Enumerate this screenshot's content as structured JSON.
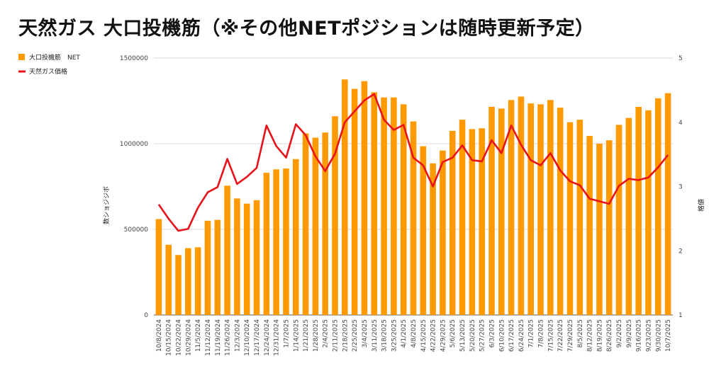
{
  "chart_data": {
    "type": "bar",
    "title": "天然ガス 大口投機筋（※その他NETポジションは随時更新予定）",
    "categories": [
      "10/8/2024",
      "10/15/2024",
      "10/22/2024",
      "10/29/2024",
      "11/5/2024",
      "11/12/2024",
      "11/19/2024",
      "11/26/2024",
      "12/3/2024",
      "12/10/2024",
      "12/17/2024",
      "12/24/2024",
      "12/31/2024",
      "1/7/2025",
      "1/14/2025",
      "1/21/2025",
      "1/28/2025",
      "2/4/2025",
      "2/11/2025",
      "2/18/2025",
      "2/25/2025",
      "3/4/2025",
      "3/11/2025",
      "3/18/2025",
      "3/25/2025",
      "4/1/2025",
      "4/8/2025",
      "4/15/2025",
      "4/22/2025",
      "4/29/2025",
      "5/6/2025",
      "5/13/2025",
      "5/20/2025",
      "5/27/2025",
      "6/3/2025",
      "6/10/2025",
      "6/17/2025",
      "6/24/2025",
      "7/1/2025",
      "7/8/2025",
      "7/15/2025",
      "7/22/2025",
      "7/29/2025",
      "8/5/2025",
      "8/12/2025",
      "8/19/2025",
      "8/26/2025",
      "9/2/2025",
      "9/9/2025",
      "9/16/2025",
      "9/23/2025",
      "9/30/2025",
      "10/7/2025"
    ],
    "series": [
      {
        "name": "大口投機筋　NET",
        "type": "bar",
        "axis": "left",
        "color": "#FF9900",
        "values": [
          560000,
          410000,
          350000,
          390000,
          395000,
          550000,
          555000,
          755000,
          680000,
          650000,
          670000,
          830000,
          850000,
          855000,
          910000,
          1060000,
          1035000,
          1065000,
          1160000,
          1375000,
          1320000,
          1365000,
          1300000,
          1270000,
          1270000,
          1230000,
          1130000,
          985000,
          885000,
          960000,
          1075000,
          1140000,
          1085000,
          1090000,
          1215000,
          1205000,
          1255000,
          1275000,
          1235000,
          1230000,
          1255000,
          1210000,
          1125000,
          1140000,
          1045000,
          1000000,
          1020000,
          1110000,
          1150000,
          1215000,
          1195000,
          1265000,
          1295000
        ]
      },
      {
        "name": "天然ガス価格",
        "type": "line",
        "axis": "right",
        "color": "#E8121A",
        "values": [
          2.72,
          2.5,
          2.31,
          2.34,
          2.67,
          2.91,
          2.99,
          3.43,
          3.04,
          3.15,
          3.29,
          3.95,
          3.63,
          3.45,
          3.97,
          3.8,
          3.47,
          3.24,
          3.51,
          4.0,
          4.17,
          4.34,
          4.44,
          4.04,
          3.88,
          3.96,
          3.45,
          3.33,
          3.0,
          3.38,
          3.45,
          3.64,
          3.41,
          3.39,
          3.72,
          3.52,
          3.95,
          3.65,
          3.41,
          3.33,
          3.52,
          3.25,
          3.08,
          3.02,
          2.81,
          2.77,
          2.73,
          3.01,
          3.12,
          3.1,
          3.14,
          3.3,
          3.49
        ]
      }
    ],
    "y_left": {
      "label": "数ショジジボ",
      "ylim": [
        0,
        1500000
      ],
      "ticks": [
        0,
        500000,
        1000000,
        1500000
      ],
      "tick_labels": [
        "0",
        "500000",
        "1000000",
        "1500000"
      ]
    },
    "y_right": {
      "label": "格値",
      "ylim": [
        1,
        5
      ],
      "ticks": [
        1,
        2,
        3,
        4,
        5
      ],
      "tick_labels": [
        "1",
        "2",
        "3",
        "4",
        "5"
      ]
    },
    "grid": true,
    "legend_position": "top-left"
  }
}
